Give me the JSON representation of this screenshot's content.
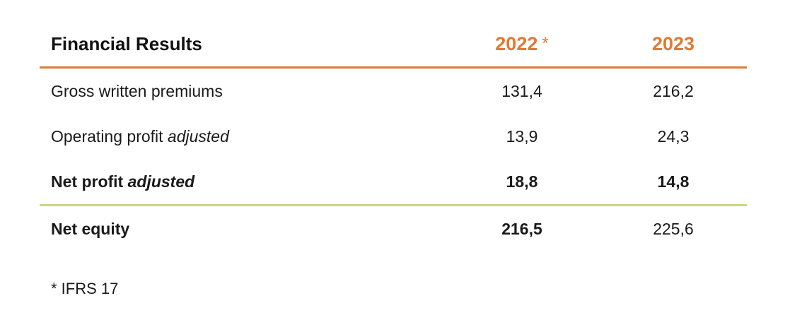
{
  "colors": {
    "accent": "#e07a34",
    "divider_top": "#e07a34",
    "divider_bottom": "#cdd67a",
    "text": "#1a1a1a"
  },
  "table": {
    "title": "Financial Results",
    "columns": [
      {
        "year": "2022",
        "marker": "*"
      },
      {
        "year": "2023",
        "marker": ""
      }
    ],
    "rows": [
      {
        "label": "Gross written premiums",
        "label_italic": "",
        "bold": false,
        "values": [
          "131,4",
          "216,2"
        ]
      },
      {
        "label": "Operating profit",
        "label_italic": "adjusted",
        "bold": false,
        "values": [
          "13,9",
          "24,3"
        ]
      },
      {
        "label": "Net profit",
        "label_italic": "adjusted",
        "bold": true,
        "values": [
          "18,8",
          "14,8"
        ]
      }
    ],
    "equity_row": {
      "label": "Net equity",
      "values": [
        "216,5",
        "225,6"
      ]
    }
  },
  "footnote": "* IFRS 17"
}
